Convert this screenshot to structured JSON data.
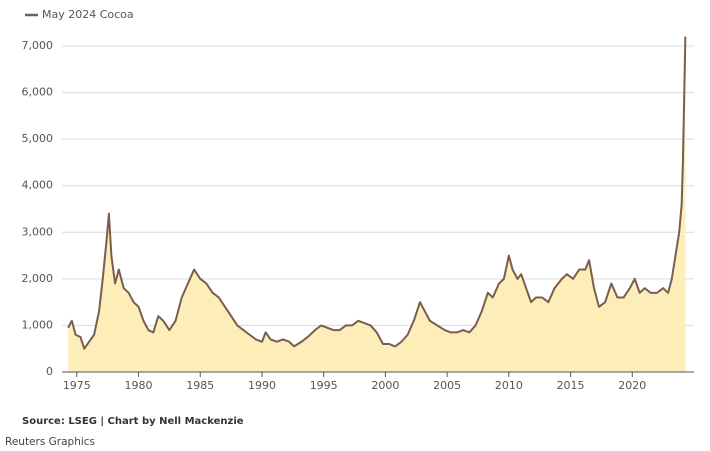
{
  "chart_data": {
    "type": "area",
    "series": [
      {
        "name": "May 2024 Cocoa",
        "color": "#7a5e4d",
        "fill": "#fdedb8",
        "x": [
          1974.3,
          1974.6,
          1974.9,
          1975.3,
          1975.6,
          1976.0,
          1976.4,
          1976.8,
          1977.1,
          1977.4,
          1977.6,
          1977.8,
          1978.1,
          1978.4,
          1978.8,
          1979.2,
          1979.6,
          1980.0,
          1980.4,
          1980.8,
          1981.2,
          1981.6,
          1982.0,
          1982.5,
          1983.0,
          1983.5,
          1984.0,
          1984.5,
          1985.0,
          1985.5,
          1986.0,
          1986.5,
          1987.0,
          1987.5,
          1988.0,
          1988.5,
          1989.0,
          1989.5,
          1990.0,
          1990.3,
          1990.7,
          1991.2,
          1991.7,
          1992.2,
          1992.6,
          1993.2,
          1993.7,
          1994.3,
          1994.8,
          1995.3,
          1995.8,
          1996.3,
          1996.8,
          1997.3,
          1997.8,
          1998.3,
          1998.8,
          1999.3,
          1999.8,
          2000.3,
          2000.8,
          2001.3,
          2001.8,
          2002.3,
          2002.8,
          2003.2,
          2003.6,
          2004.2,
          2004.8,
          2005.3,
          2005.8,
          2006.3,
          2006.8,
          2007.3,
          2007.8,
          2008.3,
          2008.7,
          2009.2,
          2009.6,
          2010.0,
          2010.3,
          2010.7,
          2011.0,
          2011.4,
          2011.8,
          2012.2,
          2012.7,
          2013.2,
          2013.7,
          2014.3,
          2014.7,
          2015.2,
          2015.7,
          2016.2,
          2016.5,
          2016.9,
          2017.3,
          2017.8,
          2018.3,
          2018.8,
          2019.3,
          2019.8,
          2020.2,
          2020.6,
          2021.0,
          2021.5,
          2022.0,
          2022.5,
          2022.9,
          2023.2,
          2023.5,
          2023.8,
          2024.0,
          2024.1,
          2024.25,
          2024.3
        ],
        "values": [
          950,
          1100,
          800,
          750,
          500,
          650,
          800,
          1300,
          2000,
          2800,
          3400,
          2500,
          1900,
          2200,
          1800,
          1700,
          1500,
          1400,
          1100,
          900,
          850,
          1200,
          1100,
          900,
          1100,
          1600,
          1900,
          2200,
          2000,
          1900,
          1700,
          1600,
          1400,
          1200,
          1000,
          900,
          800,
          700,
          650,
          850,
          700,
          650,
          700,
          650,
          550,
          650,
          750,
          900,
          1000,
          950,
          900,
          900,
          1000,
          1000,
          1100,
          1050,
          1000,
          850,
          600,
          600,
          550,
          650,
          800,
          1100,
          1500,
          1300,
          1100,
          1000,
          900,
          850,
          850,
          900,
          850,
          1000,
          1300,
          1700,
          1600,
          1900,
          2000,
          2500,
          2200,
          2000,
          2100,
          1800,
          1500,
          1600,
          1600,
          1500,
          1800,
          2000,
          2100,
          2000,
          2200,
          2200,
          2400,
          1800,
          1400,
          1500,
          1900,
          1600,
          1600,
          1800,
          2000,
          1700,
          1800,
          1700,
          1700,
          1800,
          1700,
          2000,
          2500,
          3000,
          3600,
          4500,
          6500,
          7200
        ]
      }
    ],
    "xlim": [
      1973.8,
      2025.0
    ],
    "xticks": [
      1975,
      1980,
      1985,
      1990,
      1995,
      2000,
      2005,
      2010,
      2015,
      2020
    ],
    "ylim": [
      0,
      7000
    ],
    "yticks": [
      0,
      {
        "value": 1000,
        "label": "1,000"
      },
      {
        "value": 2000,
        "label": "2,000"
      },
      {
        "value": 3000,
        "label": "3,000"
      },
      {
        "value": 4000,
        "label": "4,000"
      },
      {
        "value": 5000,
        "label": "5,000"
      },
      {
        "value": 6000,
        "label": "6,000"
      },
      {
        "value": 7000,
        "label": "7,000"
      }
    ],
    "grid": true,
    "legend": "top-left",
    "source": "Source: LSEG | Chart by Nell Mackenzie",
    "credit": "Reuters Graphics"
  }
}
